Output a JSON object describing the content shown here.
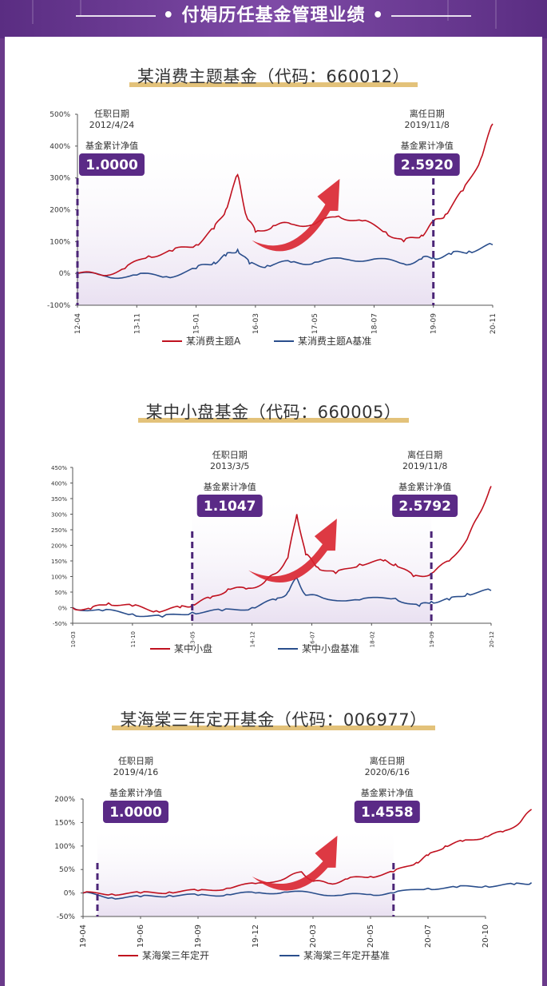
{
  "header": {
    "title": "付娟历任基金管理业绩"
  },
  "colors": {
    "fund": "#c0111f",
    "bench": "#2a4e8c",
    "badge": "#5a2a86",
    "shade": "#e9e0f1",
    "underline": "#e3c27a",
    "dash": "#4b2577"
  },
  "charts": [
    {
      "title": "某消费主题基金（代码：660012）",
      "start": {
        "label": "任职日期",
        "date": "2012/4/24",
        "nav_label": "基金累计净值",
        "nav": "1.0000"
      },
      "end": {
        "label": "离任日期",
        "date": "2019/11/8",
        "nav_label": "基金累计净值",
        "nav": "2.5920"
      },
      "legend": {
        "fund": "某消费主题A",
        "bench": "某消费主题A基准"
      }
    },
    {
      "title": "某中小盘基金（代码：660005）",
      "start": {
        "label": "任职日期",
        "date": "2013/3/5",
        "nav_label": "基金累计净值",
        "nav": "1.1047"
      },
      "end": {
        "label": "离任日期",
        "date": "2019/11/8",
        "nav_label": "基金累计净值",
        "nav": "2.5792"
      },
      "legend": {
        "fund": "某中小盘",
        "bench": "某中小盘基准"
      }
    },
    {
      "title": "某海棠三年定开基金（代码：006977）",
      "start": {
        "label": "任职日期",
        "date": "2019/4/16",
        "nav_label": "基金累计净值",
        "nav": "1.0000"
      },
      "end": {
        "label": "离任日期",
        "date": "2020/6/16",
        "nav_label": "基金累计净值",
        "nav": "1.4558"
      },
      "legend": {
        "fund": "某海棠三年定开",
        "bench": "某海棠三年定开基准"
      }
    }
  ],
  "chart_data": [
    {
      "type": "line",
      "ylim": [
        -100,
        500
      ],
      "y_ticks": [
        "-100%",
        "0%",
        "100%",
        "200%",
        "300%",
        "400%",
        "500%"
      ],
      "x_ticks": [
        "12-04",
        "13-11",
        "15-01",
        "16-03",
        "17-05",
        "18-07",
        "19-09",
        "20-11"
      ],
      "start_index": 0,
      "end_index": 6,
      "series": [
        {
          "name": "某消费主题A",
          "color": "#c0111f",
          "x": [
            0,
            0.4,
            0.8,
            1.2,
            1.6,
            2.0,
            2.3,
            2.5,
            2.7,
            2.85,
            3.0,
            3.3,
            3.6,
            4.0,
            4.4,
            4.8,
            5.2,
            5.5,
            5.8,
            6.0,
            6.2,
            6.5,
            6.8,
            7.0
          ],
          "y": [
            0,
            -5,
            15,
            55,
            70,
            90,
            140,
            200,
            310,
            180,
            130,
            150,
            155,
            155,
            180,
            165,
            130,
            100,
            120,
            160,
            185,
            260,
            360,
            470
          ]
        },
        {
          "name": "某消费主题A基准",
          "color": "#2a4e8c",
          "x": [
            0,
            0.5,
            1.0,
            1.5,
            2.0,
            2.3,
            2.5,
            2.7,
            2.9,
            3.2,
            3.6,
            4.0,
            4.5,
            5.0,
            5.5,
            5.8,
            6.0,
            6.3,
            6.6,
            7.0
          ],
          "y": [
            0,
            -10,
            -5,
            -10,
            15,
            35,
            55,
            75,
            30,
            25,
            35,
            35,
            45,
            45,
            30,
            45,
            50,
            60,
            70,
            90
          ]
        }
      ]
    },
    {
      "type": "line",
      "ylim": [
        -50,
        450
      ],
      "y_ticks": [
        "-50%",
        "0%",
        "50%",
        "100%",
        "150%",
        "200%",
        "250%",
        "300%",
        "350%",
        "400%",
        "450%"
      ],
      "x_ticks": [
        "10-03",
        "11-10",
        "13-05",
        "14-12",
        "16-07",
        "18-02",
        "19-09",
        "20-12"
      ],
      "start_index": 2,
      "end_index": 6,
      "series": [
        {
          "name": "某中小盘",
          "color": "#c0111f",
          "x": [
            0,
            0.3,
            0.6,
            1.0,
            1.4,
            1.8,
            2.0,
            2.3,
            2.6,
            2.9,
            3.2,
            3.4,
            3.6,
            3.75,
            3.9,
            4.1,
            4.4,
            4.8,
            5.2,
            5.4,
            5.7,
            6.0,
            6.3,
            6.6,
            6.8,
            7.0
          ],
          "y": [
            0,
            -5,
            15,
            5,
            -10,
            0,
            10,
            30,
            60,
            60,
            80,
            110,
            160,
            300,
            170,
            130,
            110,
            140,
            150,
            140,
            100,
            110,
            150,
            220,
            300,
            390
          ]
        },
        {
          "name": "某中小盘基准",
          "color": "#2a4e8c",
          "x": [
            0,
            0.5,
            1.0,
            1.5,
            2.0,
            2.5,
            3.0,
            3.4,
            3.6,
            3.75,
            3.9,
            4.2,
            4.8,
            5.4,
            5.8,
            6.0,
            6.3,
            6.6,
            7.0
          ],
          "y": [
            0,
            -10,
            -20,
            -30,
            -15,
            -10,
            0,
            25,
            50,
            95,
            40,
            30,
            25,
            30,
            5,
            20,
            25,
            45,
            55
          ]
        }
      ]
    },
    {
      "type": "line",
      "ylim": [
        -50,
        200
      ],
      "y_ticks": [
        "-50%",
        "0%",
        "50%",
        "100%",
        "150%",
        "200%"
      ],
      "x_ticks": [
        "19-04",
        "19-06",
        "19-09",
        "19-12",
        "20-03",
        "20-05",
        "20-07",
        "20-10"
      ],
      "start_index": 0.25,
      "end_index": 5.4,
      "series": [
        {
          "name": "某海棠三年定开",
          "color": "#c0111f",
          "x": [
            0,
            0.5,
            1.0,
            1.5,
            2.0,
            2.5,
            3.0,
            3.5,
            3.8,
            4.0,
            4.3,
            4.6,
            5.0,
            5.4,
            5.8,
            6.0,
            6.3,
            6.6,
            7.0,
            7.3,
            7.6,
            7.8
          ],
          "y": [
            0,
            -2,
            0,
            2,
            5,
            10,
            20,
            30,
            45,
            25,
            20,
            30,
            35,
            45,
            65,
            80,
            100,
            110,
            120,
            130,
            150,
            178
          ]
        },
        {
          "name": "某海棠三年定开基准",
          "color": "#2a4e8c",
          "x": [
            0,
            0.5,
            1.0,
            1.5,
            2.0,
            2.5,
            3.0,
            3.5,
            4.0,
            4.5,
            5.0,
            5.4,
            6.0,
            6.5,
            7.0,
            7.5,
            7.8
          ],
          "y": [
            0,
            -10,
            -8,
            -5,
            -5,
            -3,
            0,
            2,
            0,
            -5,
            -3,
            0,
            10,
            12,
            15,
            18,
            22
          ]
        }
      ]
    }
  ]
}
